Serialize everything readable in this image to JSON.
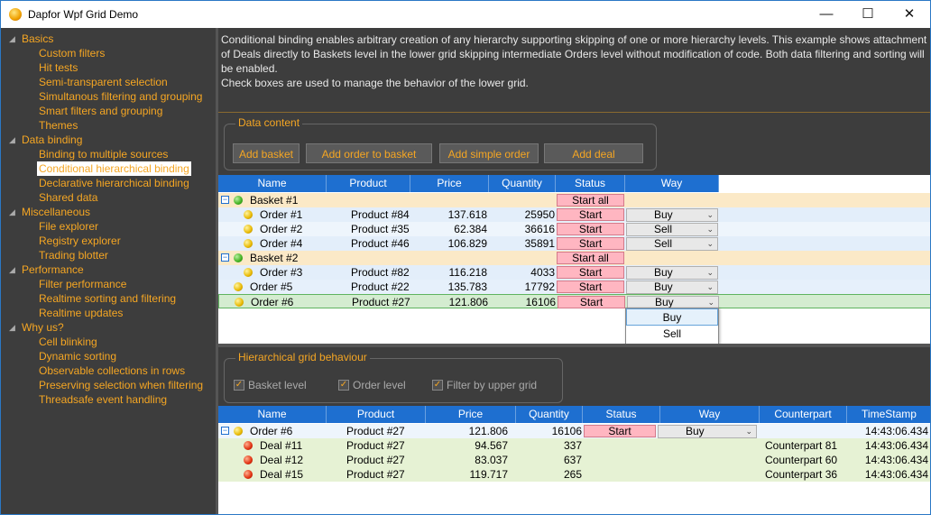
{
  "window": {
    "title": "Dapfor Wpf Grid Demo",
    "minimize": "—",
    "maximize": "☐",
    "close": "✕"
  },
  "sidebar": {
    "items": [
      {
        "label": "Basics",
        "level": 0
      },
      {
        "label": "Custom filters",
        "level": 1
      },
      {
        "label": "Hit tests",
        "level": 1
      },
      {
        "label": "Semi-transparent selection",
        "level": 1
      },
      {
        "label": "Simultanous filtering and grouping",
        "level": 1
      },
      {
        "label": "Smart filters and grouping",
        "level": 1
      },
      {
        "label": "Themes",
        "level": 1
      },
      {
        "label": "Data binding",
        "level": 0
      },
      {
        "label": "Binding to multiple sources",
        "level": 1
      },
      {
        "label": "Conditional hierarchical binding",
        "level": 1,
        "selected": true
      },
      {
        "label": "Declarative hierarchical binding",
        "level": 1
      },
      {
        "label": "Shared data",
        "level": 1
      },
      {
        "label": "Miscellaneous",
        "level": 0
      },
      {
        "label": "File explorer",
        "level": 1
      },
      {
        "label": "Registry explorer",
        "level": 1
      },
      {
        "label": "Trading blotter",
        "level": 1
      },
      {
        "label": "Performance",
        "level": 0
      },
      {
        "label": "Filter performance",
        "level": 1
      },
      {
        "label": "Realtime sorting and filtering",
        "level": 1
      },
      {
        "label": "Realtime updates",
        "level": 1
      },
      {
        "label": "Why us?",
        "level": 0
      },
      {
        "label": "Cell blinking",
        "level": 1
      },
      {
        "label": "Dynamic sorting",
        "level": 1
      },
      {
        "label": "Observable collections in rows",
        "level": 1
      },
      {
        "label": "Preserving selection when filtering",
        "level": 1
      },
      {
        "label": "Threadsafe event handling",
        "level": 1
      }
    ]
  },
  "description": {
    "p1": "Conditional binding enables arbitrary creation of any hierarchy supporting skipping of one or more hierarchy levels. This example shows attachment of Deals directly to Baskets level in the lower grid skipping intermediate Orders level without modification of code. Both data filtering and sorting will be enabled.",
    "p2": "Check boxes are used to manage the behavior of the lower grid."
  },
  "data_content": {
    "legend": "Data content",
    "add_basket": "Add basket",
    "add_order": "Add order to basket",
    "add_simple_order": "Add simple order",
    "add_deal": "Add deal"
  },
  "upper_grid": {
    "headers": [
      "Name",
      "Product",
      "Price",
      "Quantity",
      "Status",
      "Way"
    ],
    "rows": [
      {
        "type": "basket",
        "name": "Basket #1",
        "status": "Start all"
      },
      {
        "type": "order",
        "name": "Order #1",
        "product": "Product #84",
        "price": "137.618",
        "qty": "25950",
        "status": "Start",
        "way": "Buy"
      },
      {
        "type": "order",
        "name": "Order #2",
        "product": "Product #35",
        "price": "62.384",
        "qty": "36616",
        "status": "Start",
        "way": "Sell"
      },
      {
        "type": "order",
        "name": "Order #4",
        "product": "Product #46",
        "price": "106.829",
        "qty": "35891",
        "status": "Start",
        "way": "Sell"
      },
      {
        "type": "basket",
        "name": "Basket #2",
        "status": "Start all"
      },
      {
        "type": "order",
        "name": "Order #3",
        "product": "Product #82",
        "price": "116.218",
        "qty": "4033",
        "status": "Start",
        "way": "Buy"
      },
      {
        "type": "simple",
        "name": "Order #5",
        "product": "Product #22",
        "price": "135.783",
        "qty": "17792",
        "status": "Start",
        "way": "Buy"
      },
      {
        "type": "simple-selected",
        "name": "Order #6",
        "product": "Product #27",
        "price": "121.806",
        "qty": "16106",
        "status": "Start",
        "way": "Buy"
      }
    ],
    "dropdown": [
      "Buy",
      "Sell"
    ]
  },
  "behaviour": {
    "legend": "Hierarchical grid behaviour",
    "basket_level": "Basket level",
    "order_level": "Order level",
    "filter_upper": "Filter by upper grid"
  },
  "lower_grid": {
    "headers": [
      "Name",
      "Product",
      "Price",
      "Quantity",
      "Status",
      "Way",
      "Counterpart",
      "TimeStamp"
    ],
    "rows": [
      {
        "type": "order",
        "name": "Order #6",
        "product": "Product #27",
        "price": "121.806",
        "qty": "16106",
        "status": "Start",
        "way": "Buy",
        "counterpart": "",
        "time": "14:43:06.434"
      },
      {
        "type": "deal",
        "name": "Deal #11",
        "product": "Product #27",
        "price": "94.567",
        "qty": "337",
        "counterpart": "Counterpart 81",
        "time": "14:43:06.434"
      },
      {
        "type": "deal",
        "name": "Deal #12",
        "product": "Product #27",
        "price": "83.037",
        "qty": "637",
        "counterpart": "Counterpart 60",
        "time": "14:43:06.434"
      },
      {
        "type": "deal",
        "name": "Deal #15",
        "product": "Product #27",
        "price": "119.717",
        "qty": "265",
        "counterpart": "Counterpart 36",
        "time": "14:43:06.434"
      }
    ]
  }
}
